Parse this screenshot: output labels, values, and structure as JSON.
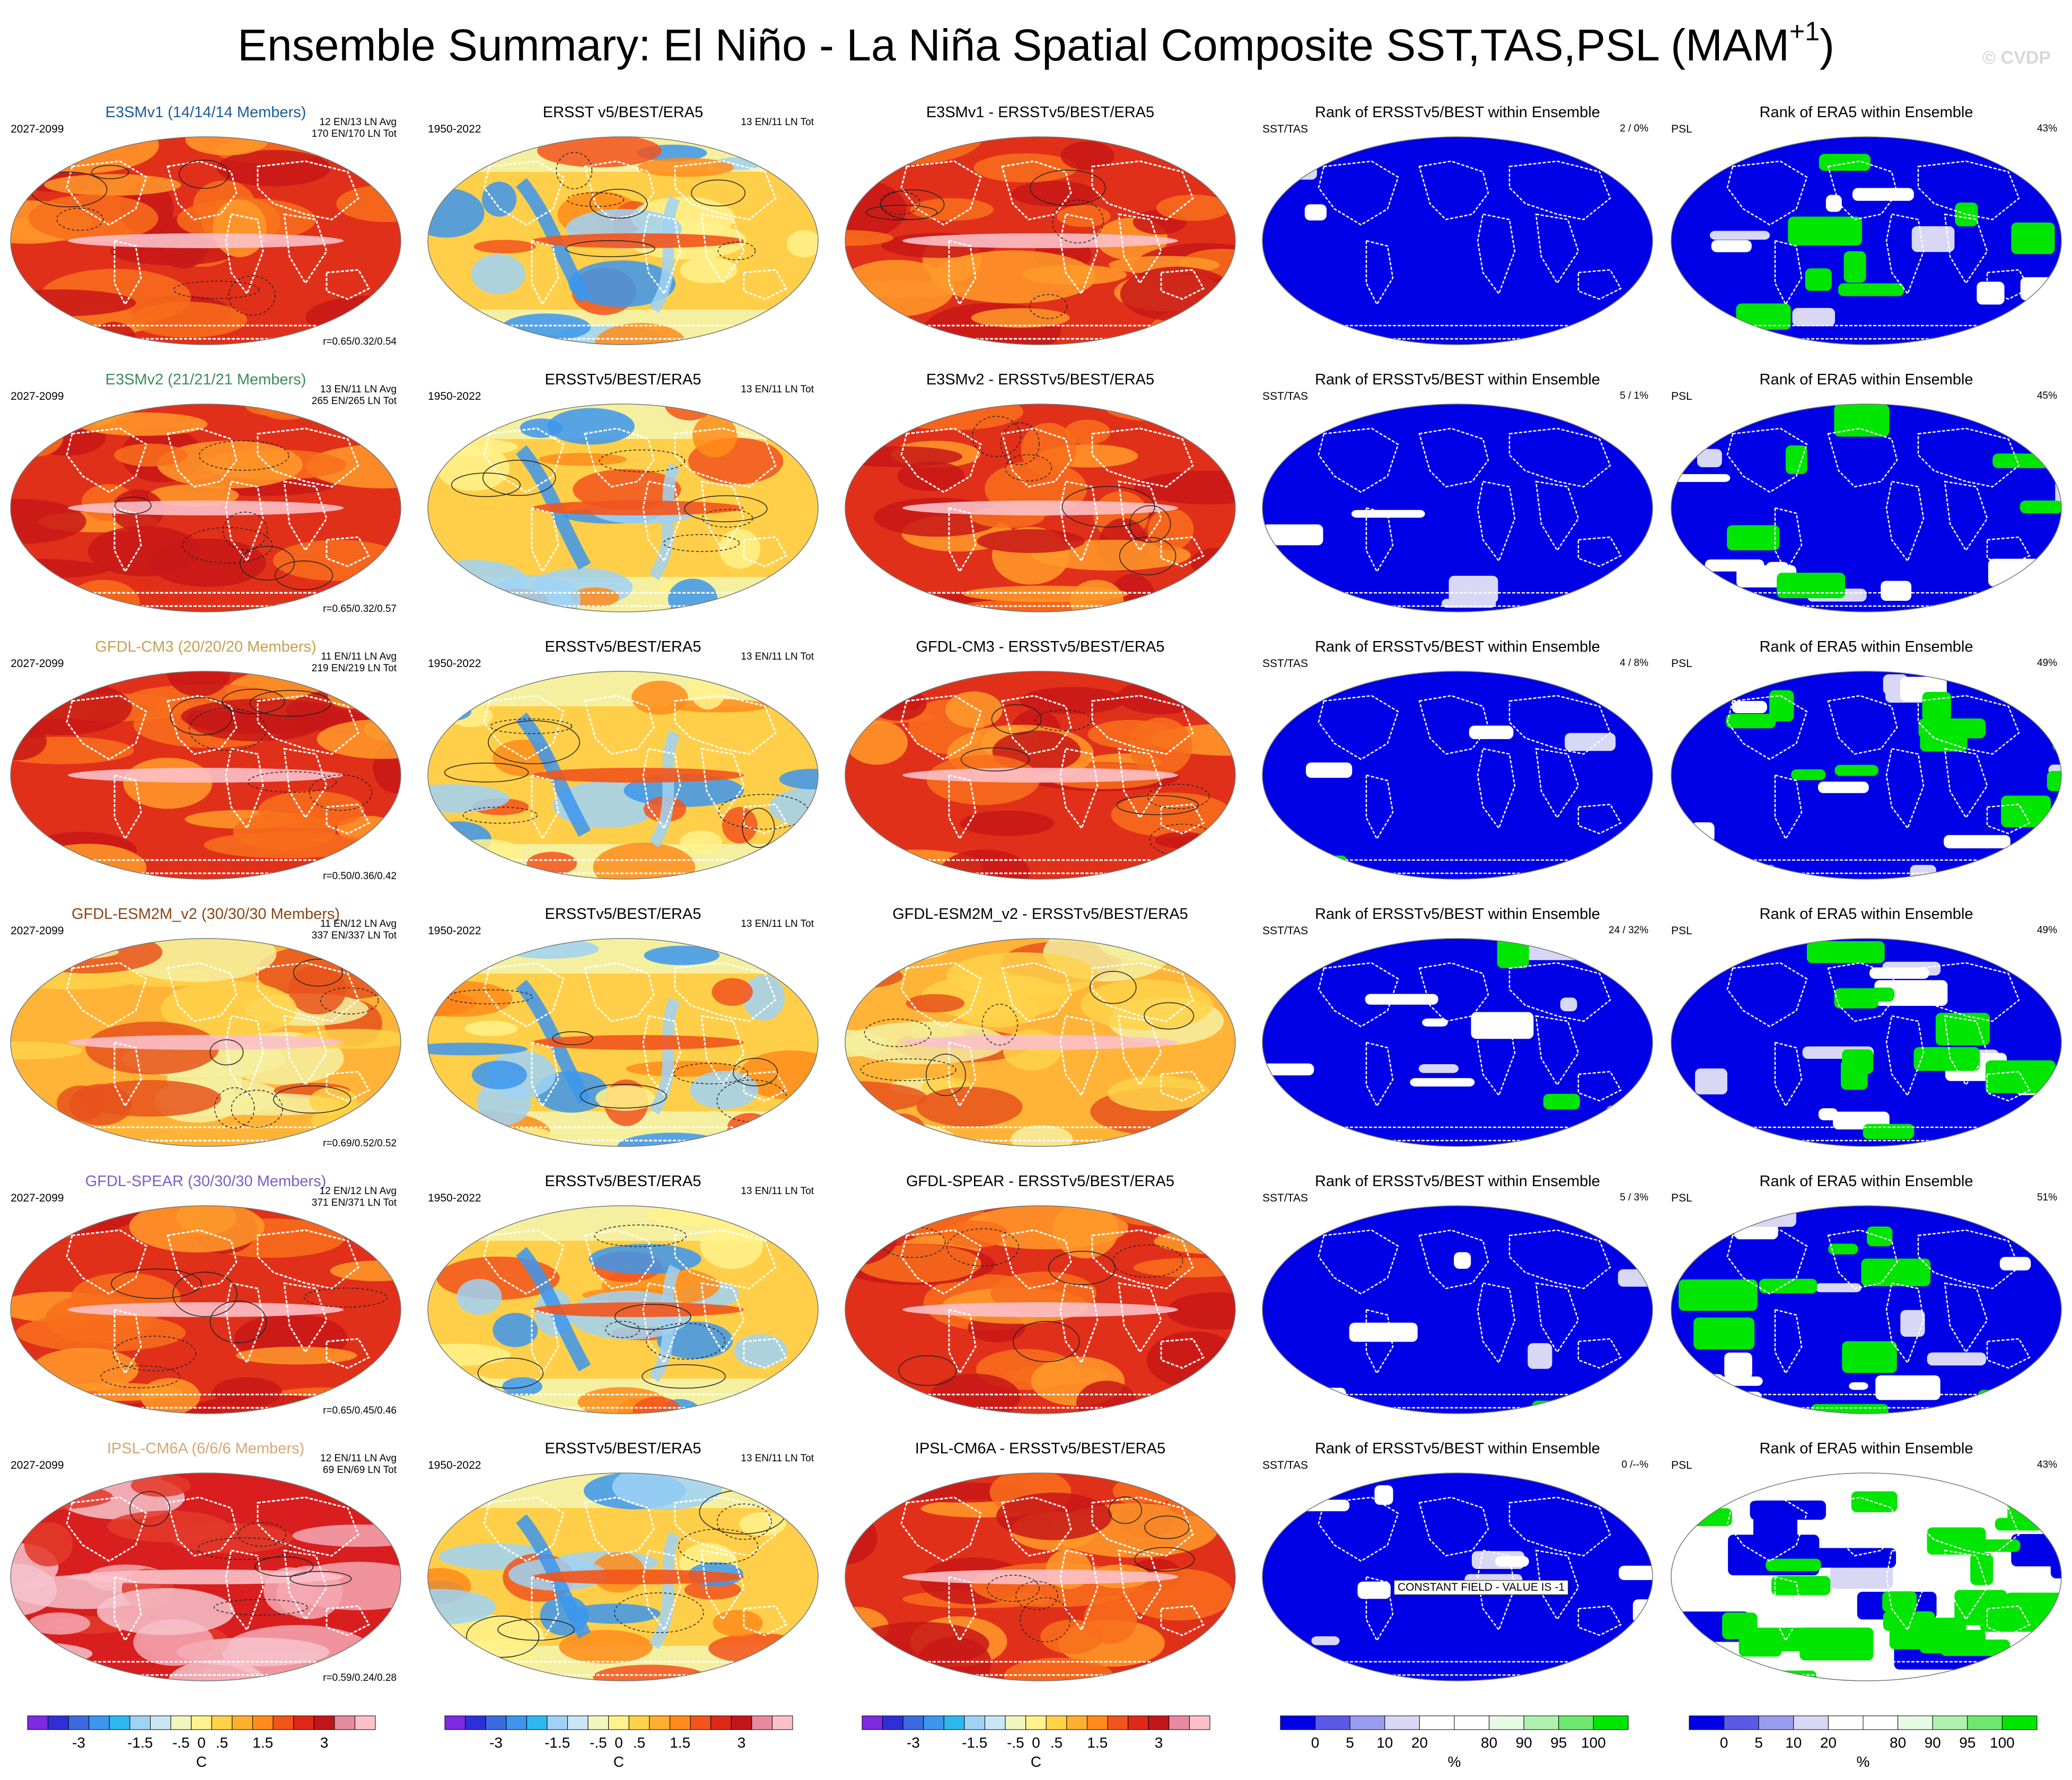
{
  "header": {
    "title_main": "Ensemble Summary: El Niño - La Niña Spatial Composite SST,TAS,PSL (MAM",
    "title_sup": "+1",
    "title_end": ")",
    "watermark": "© CVDP"
  },
  "colors": {
    "temperature_scale": [
      "#7d2ae0",
      "#2f2fd8",
      "#3c6be0",
      "#3c96ee",
      "#2fb7f0",
      "#9fd2f5",
      "#c9e6f5",
      "#f2f6be",
      "#fff28c",
      "#ffd24a",
      "#ffaf2e",
      "#ff8c1a",
      "#f2541c",
      "#e02818",
      "#c0161c",
      "#e88aa0",
      "#fcc0c8"
    ],
    "rank_scale": [
      "#0000e6",
      "#5a5ae6",
      "#9b9bf0",
      "#d8d8f5",
      "#ffffff",
      "#ffffff",
      "#e6fae6",
      "#b0f0b0",
      "#6ee86e",
      "#00e600"
    ],
    "land_outline": "#ffffff",
    "rank_land_outline": "#ffffff"
  },
  "legends": [
    {
      "ticks": [
        "-3",
        "-1.5",
        "-.5",
        "0",
        ".5",
        "1.5",
        "3"
      ],
      "units": "C",
      "type": "temperature"
    },
    {
      "ticks": [
        "-3",
        "-1.5",
        "-.5",
        "0",
        ".5",
        "1.5",
        "3"
      ],
      "units": "C",
      "type": "temperature"
    },
    {
      "ticks": [
        "-3",
        "-1.5",
        "-.5",
        "0",
        ".5",
        "1.5",
        "3"
      ],
      "units": "C",
      "type": "temperature"
    },
    {
      "ticks": [
        "0",
        "5",
        "10",
        "20",
        "80",
        "90",
        "95",
        "100"
      ],
      "units": "%",
      "type": "rank"
    },
    {
      "ticks": [
        "0",
        "5",
        "10",
        "20",
        "80",
        "90",
        "95",
        "100"
      ],
      "units": "%",
      "type": "rank"
    }
  ],
  "rows": [
    {
      "model": {
        "title": "E3SMv1 (14/14/14 Members)",
        "title_color": "#1a5a9e",
        "years": "2027-2099",
        "stats": [
          "12 EN/13 LN Avg",
          "170 EN/170 LN Tot"
        ],
        "corr": "r=0.65/0.32/0.54",
        "style": "hot"
      },
      "obs": {
        "title": "ERSST v5/BEST/ERA5",
        "years": "1950-2022",
        "stats": [
          "13 EN/11 LN Tot"
        ]
      },
      "diff": {
        "title": "E3SMv1 - ERSSTv5/BEST/ERA5",
        "style": "hot"
      },
      "rank1": {
        "title": "Rank of ERSSTv5/BEST within Ensemble",
        "label": "SST/TAS",
        "value": "2 /  0%",
        "blue": 0.95,
        "green": 0.0
      },
      "rank2": {
        "title": "Rank of ERA5 within Ensemble",
        "label": "PSL",
        "value": "43%",
        "blue": 0.55,
        "green": 0.25
      }
    },
    {
      "model": {
        "title": "E3SMv2 (21/21/21 Members)",
        "title_color": "#3c8c5a",
        "years": "2027-2099",
        "stats": [
          "13 EN/11 LN Avg",
          "265 EN/265 LN Tot"
        ],
        "corr": "r=0.65/0.32/0.57",
        "style": "hot"
      },
      "obs": {
        "title": "ERSSTv5/BEST/ERA5",
        "years": "1950-2022",
        "stats": [
          "13 EN/11 LN Tot"
        ]
      },
      "diff": {
        "title": "E3SMv2 - ERSSTv5/BEST/ERA5",
        "style": "hot"
      },
      "rank1": {
        "title": "Rank of ERSSTv5/BEST within Ensemble",
        "label": "SST/TAS",
        "value": "5 /  1%",
        "blue": 0.85,
        "green": 0.0
      },
      "rank2": {
        "title": "Rank of ERA5 within Ensemble",
        "label": "PSL",
        "value": "45%",
        "blue": 0.5,
        "green": 0.2
      }
    },
    {
      "model": {
        "title": "GFDL-CM3 (20/20/20 Members)",
        "title_color": "#c8a050",
        "years": "2027-2099",
        "stats": [
          "11 EN/11 LN Avg",
          "219 EN/219 LN Tot"
        ],
        "corr": "r=0.50/0.36/0.42",
        "style": "hot"
      },
      "obs": {
        "title": "ERSSTv5/BEST/ERA5",
        "years": "1950-2022",
        "stats": [
          "13 EN/11 LN Tot"
        ]
      },
      "diff": {
        "title": "GFDL-CM3 - ERSSTv5/BEST/ERA5",
        "style": "hot"
      },
      "rank1": {
        "title": "Rank of ERSSTv5/BEST within Ensemble",
        "label": "SST/TAS",
        "value": "4 /  8%",
        "blue": 0.9,
        "green": 0.02
      },
      "rank2": {
        "title": "Rank of ERA5 within Ensemble",
        "label": "PSL",
        "value": "49%",
        "blue": 0.45,
        "green": 0.3
      }
    },
    {
      "model": {
        "title": "GFDL-ESM2M_v2 (30/30/30 Members)",
        "title_color": "#8b4513",
        "years": "2027-2099",
        "stats": [
          "11 EN/12 LN Avg",
          "337 EN/337 LN Tot"
        ],
        "corr": "r=0.69/0.52/0.52",
        "style": "mild"
      },
      "obs": {
        "title": "ERSSTv5/BEST/ERA5",
        "years": "1950-2022",
        "stats": [
          "13 EN/11 LN Tot"
        ]
      },
      "diff": {
        "title": "GFDL-ESM2M_v2 - ERSSTv5/BEST/ERA5",
        "style": "mild"
      },
      "rank1": {
        "title": "Rank of ERSSTv5/BEST within Ensemble",
        "label": "SST/TAS",
        "value": "24 /  32%",
        "blue": 0.65,
        "green": 0.04
      },
      "rank2": {
        "title": "Rank of ERA5 within Ensemble",
        "label": "PSL",
        "value": "49%",
        "blue": 0.45,
        "green": 0.3
      }
    },
    {
      "model": {
        "title": "GFDL-SPEAR (30/30/30 Members)",
        "title_color": "#7b5ec8",
        "years": "2027-2099",
        "stats": [
          "12 EN/12 LN Avg",
          "371 EN/371 LN Tot"
        ],
        "corr": "r=0.65/0.45/0.46",
        "style": "hot"
      },
      "obs": {
        "title": "ERSSTv5/BEST/ERA5",
        "years": "1950-2022",
        "stats": [
          "13 EN/11 LN Tot"
        ]
      },
      "diff": {
        "title": "GFDL-SPEAR - ERSSTv5/BEST/ERA5",
        "style": "hot"
      },
      "rank1": {
        "title": "Rank of ERSSTv5/BEST within Ensemble",
        "label": "SST/TAS",
        "value": "5 /  3%",
        "blue": 0.85,
        "green": 0.02
      },
      "rank2": {
        "title": "Rank of ERA5 within Ensemble",
        "label": "PSL",
        "value": "51%",
        "blue": 0.4,
        "green": 0.25
      }
    },
    {
      "model": {
        "title": "IPSL-CM6A (6/6/6 Members)",
        "title_color": "#d4a870",
        "years": "2027-2099",
        "stats": [
          "12 EN/11 LN Avg",
          "69 EN/69 LN Tot"
        ],
        "corr": "r=0.59/0.24/0.28",
        "style": "pink"
      },
      "obs": {
        "title": "ERSSTv5/BEST/ERA5",
        "years": "1950-2022",
        "stats": [
          "13 EN/11 LN Tot"
        ]
      },
      "diff": {
        "title": "IPSL-CM6A - ERSSTv5/BEST/ERA5",
        "style": "hot"
      },
      "rank1": {
        "title": "Rank of ERSSTv5/BEST within Ensemble",
        "label": "SST/TAS",
        "value": "0 /--%",
        "blue": 0.7,
        "green": 0.0,
        "constant_note": "CONSTANT FIELD - VALUE IS -1"
      },
      "rank2": {
        "title": "Rank of ERA5 within Ensemble",
        "label": "PSL",
        "value": "43%",
        "blue": 0.2,
        "green": 0.7
      }
    }
  ]
}
